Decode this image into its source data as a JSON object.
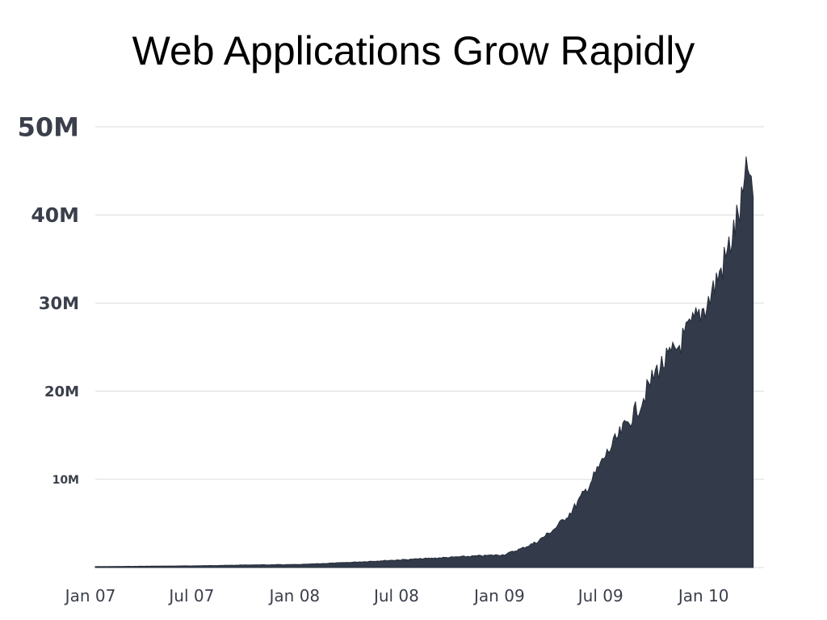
{
  "slide": {
    "title": "Web Applications Grow Rapidly"
  },
  "chart_data": {
    "type": "area",
    "title": "",
    "xlabel": "",
    "ylabel": "",
    "grid": true,
    "legend": "none",
    "area_color": "#333b4b",
    "ylim": [
      0,
      50000000
    ],
    "xlim": [
      "2007-01-01",
      "2010-03-24"
    ],
    "y_tick_labels": [
      {
        "value": 50000000,
        "label": "50M"
      },
      {
        "value": 40000000,
        "label": "40M"
      },
      {
        "value": 30000000,
        "label": "30M"
      },
      {
        "value": 20000000,
        "label": "20M"
      },
      {
        "value": 10000000,
        "label": "10M"
      }
    ],
    "x_tick_labels": [
      {
        "date": "2007-01-01",
        "label": "Jan 07"
      },
      {
        "date": "2007-07-01",
        "label": "Jul 07"
      },
      {
        "date": "2008-01-01",
        "label": "Jan 08"
      },
      {
        "date": "2008-07-01",
        "label": "Jul 08"
      },
      {
        "date": "2009-01-01",
        "label": "Jan 09"
      },
      {
        "date": "2009-07-01",
        "label": "Jul 09"
      },
      {
        "date": "2010-01-01",
        "label": "Jan 10"
      }
    ],
    "series": [
      {
        "x": [
          "2007-01-01",
          "2007-04-01",
          "2007-07-01",
          "2007-10-01",
          "2008-01-01",
          "2008-04-01",
          "2008-07-01",
          "2008-10-01",
          "2009-01-01",
          "2009-02-01",
          "2009-03-01",
          "2009-04-01",
          "2009-05-01",
          "2009-06-01",
          "2009-07-01",
          "2009-08-01",
          "2009-09-01",
          "2009-10-01",
          "2009-11-01",
          "2009-12-01",
          "2010-01-01",
          "2010-02-01",
          "2010-03-01",
          "2010-03-15",
          "2010-03-22"
        ],
        "values": [
          100000,
          150000,
          200000,
          300000,
          350000,
          600000,
          900000,
          1200000,
          1500000,
          2200000,
          3000000,
          4500000,
          6500000,
          9500000,
          13000000,
          16000000,
          19000000,
          23000000,
          25000000,
          28000000,
          31000000,
          36000000,
          42000000,
          47000000,
          42000000
        ]
      }
    ]
  }
}
